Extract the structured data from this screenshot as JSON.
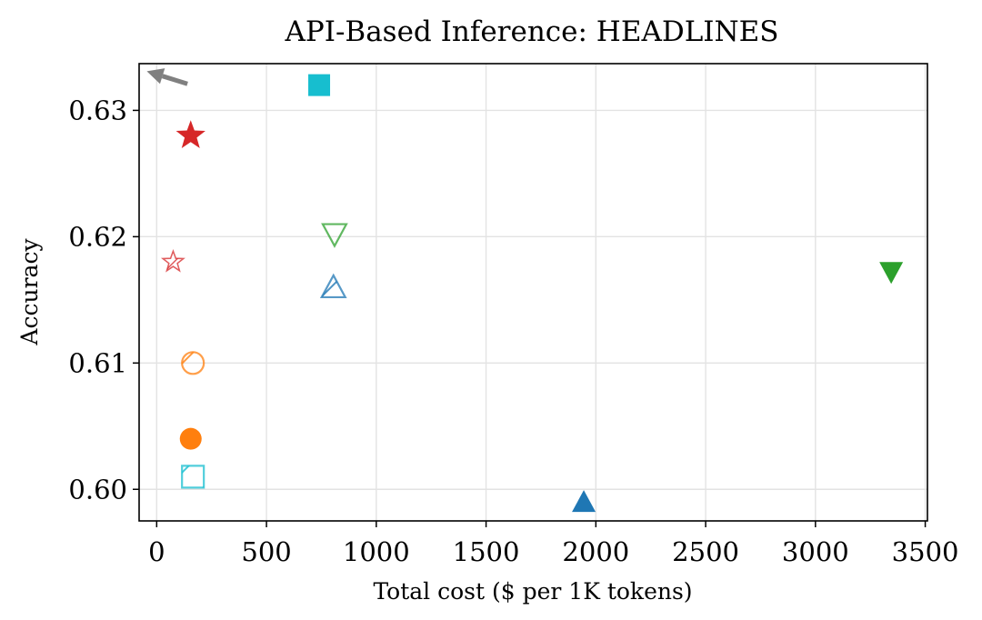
{
  "chart_data": {
    "type": "scatter",
    "title": "API-Based Inference: HEADLINES",
    "xlabel": "Total cost ($ per 1K tokens)",
    "ylabel": "Accuracy",
    "xlim": [
      -80,
      3510
    ],
    "ylim": [
      0.5975,
      0.6337
    ],
    "xticks": [
      0,
      500,
      1000,
      1500,
      2000,
      2500,
      3000,
      3500
    ],
    "xtick_labels": [
      "0",
      "500",
      "1000",
      "1500",
      "2000",
      "2500",
      "3000",
      "3500"
    ],
    "yticks": [
      0.6,
      0.61,
      0.62,
      0.63
    ],
    "ytick_labels": [
      "0.60",
      "0.61",
      "0.62",
      "0.63"
    ],
    "grid": true,
    "legend": false,
    "annotation": {
      "type": "arrow",
      "meaning": "better (toward low cost, high accuracy)",
      "from": [
        140,
        0.6321
      ],
      "to": [
        -45,
        0.6331
      ],
      "color": "#808080"
    },
    "points": [
      {
        "x": 740,
        "y": 0.632,
        "marker": "square",
        "fill": "solid",
        "color": "#17becf"
      },
      {
        "x": 155,
        "y": 0.628,
        "marker": "star",
        "fill": "solid",
        "color": "#d62728"
      },
      {
        "x": 810,
        "y": 0.6202,
        "marker": "triangle-down",
        "fill": "hatched",
        "color": "#2ca02c"
      },
      {
        "x": 75,
        "y": 0.618,
        "marker": "star",
        "fill": "hatched",
        "color": "#d62728"
      },
      {
        "x": 3345,
        "y": 0.6172,
        "marker": "triangle-down",
        "fill": "solid",
        "color": "#2ca02c"
      },
      {
        "x": 805,
        "y": 0.616,
        "marker": "triangle-up",
        "fill": "hatched",
        "color": "#1f77b4"
      },
      {
        "x": 165,
        "y": 0.61,
        "marker": "circle",
        "fill": "hatched",
        "color": "#ff7f0e"
      },
      {
        "x": 155,
        "y": 0.604,
        "marker": "circle",
        "fill": "solid",
        "color": "#ff7f0e"
      },
      {
        "x": 165,
        "y": 0.601,
        "marker": "square",
        "fill": "hatched",
        "color": "#17becf"
      },
      {
        "x": 1945,
        "y": 0.599,
        "marker": "triangle-up",
        "fill": "solid",
        "color": "#1f77b4"
      }
    ]
  }
}
